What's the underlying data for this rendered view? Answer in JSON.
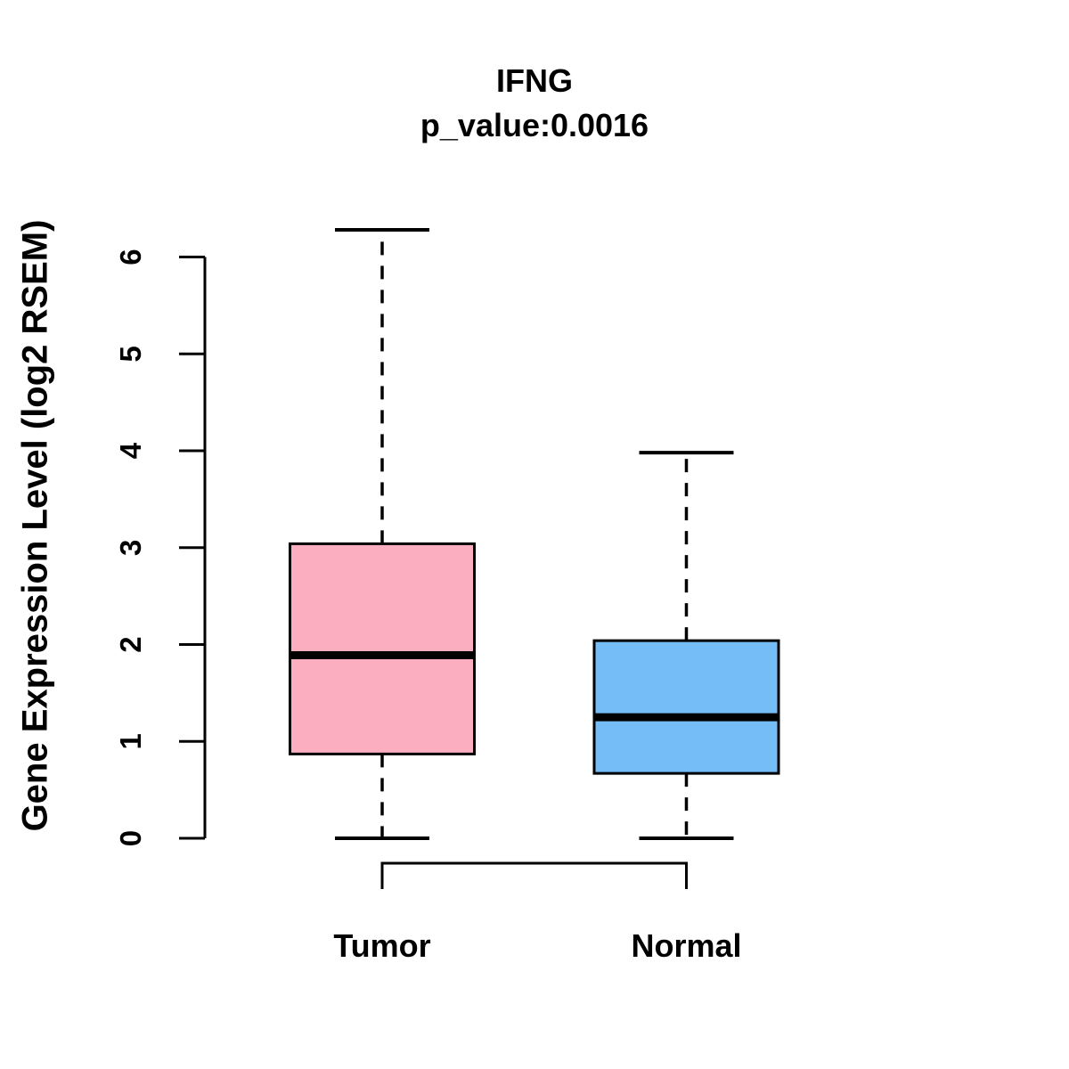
{
  "chart_data": {
    "type": "boxplot",
    "title": "IFNG",
    "subtitle": "p_value:0.0016",
    "ylabel": "Gene Expression Level (log2 RSEM)",
    "xlabel": "",
    "ylim": [
      0,
      6.5
    ],
    "yticks": [
      0,
      1,
      2,
      3,
      4,
      5,
      6
    ],
    "grid": false,
    "legend": "none",
    "categories": [
      "Tumor",
      "Normal"
    ],
    "groups": [
      {
        "label": "Tumor",
        "fill_color": "#FCAEC1",
        "whisker_low": 0,
        "q1": 0.87,
        "median": 1.89,
        "q3": 3.04,
        "whisker_high": 6.28
      },
      {
        "label": "Normal",
        "fill_color": "#75BDF7",
        "whisker_low": 0,
        "q1": 0.67,
        "median": 1.25,
        "q3": 2.04,
        "whisker_high": 3.98
      }
    ],
    "comparison_bracket": {
      "between": [
        "Tumor",
        "Normal"
      ]
    },
    "style": {
      "box_border_color": "#000000",
      "median_color": "#000000",
      "axis_color": "#000000",
      "whisker_style": "dashed",
      "background": "#FFFFFF"
    }
  }
}
